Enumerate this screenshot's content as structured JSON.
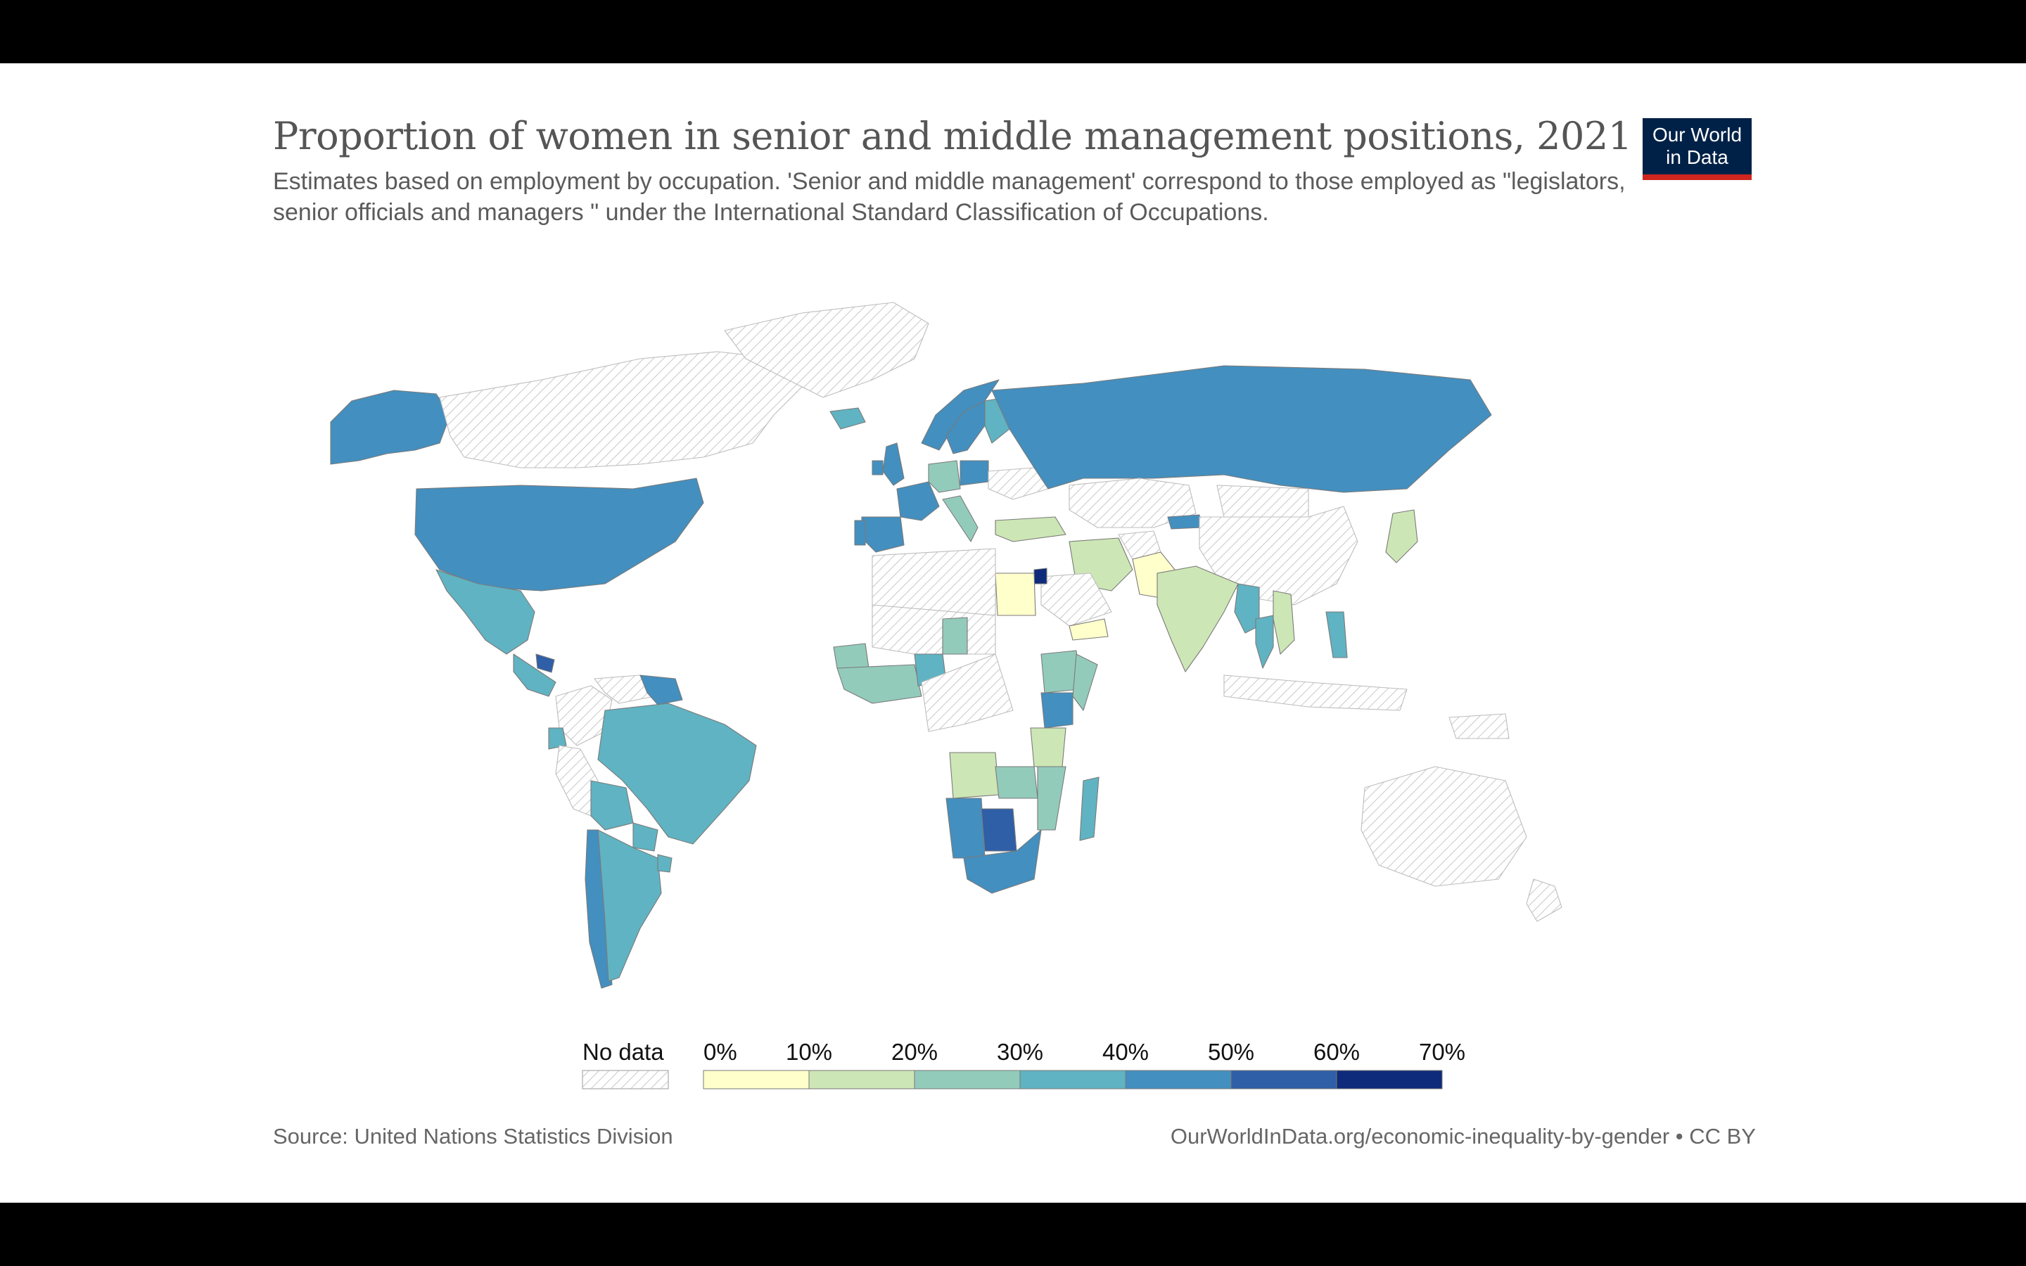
{
  "title": "Proportion of women in senior and middle management positions, 2021",
  "subtitle": "Estimates based on employment by occupation. 'Senior and middle management' correspond to those employed as \"legislators, senior officials and managers \" under the International Standard Classification of Occupations.",
  "logo": {
    "line1": "Our World",
    "line2": "in Data",
    "background": "#002147",
    "accent": "#ce261e"
  },
  "legend": {
    "no_data_label": "No data",
    "ticks": [
      "0%",
      "10%",
      "20%",
      "30%",
      "40%",
      "50%",
      "60%",
      "70%"
    ],
    "bins": [
      {
        "from": 0,
        "to": 10,
        "color": "#ffffcc"
      },
      {
        "from": 10,
        "to": 20,
        "color": "#cde6b5"
      },
      {
        "from": 20,
        "to": 30,
        "color": "#93cbbb"
      },
      {
        "from": 30,
        "to": 40,
        "color": "#60b3c2"
      },
      {
        "from": 40,
        "to": 50,
        "color": "#438fbf"
      },
      {
        "from": 50,
        "to": 60,
        "color": "#2f5fa6"
      },
      {
        "from": 60,
        "to": 70,
        "color": "#0e2a7a"
      }
    ]
  },
  "map_data": {
    "type": "choropleth",
    "year": 2021,
    "unit": "%",
    "regions": [
      {
        "name": "United States",
        "bin": 4
      },
      {
        "name": "Alaska",
        "bin": 4
      },
      {
        "name": "Canada",
        "bin": null
      },
      {
        "name": "Greenland",
        "bin": null
      },
      {
        "name": "Mexico",
        "bin": 3
      },
      {
        "name": "Central America",
        "bin": 3
      },
      {
        "name": "Guatemala",
        "bin": 5
      },
      {
        "name": "Colombia",
        "bin": null
      },
      {
        "name": "Venezuela",
        "bin": null
      },
      {
        "name": "Guyana",
        "bin": 4
      },
      {
        "name": "Ecuador",
        "bin": 3
      },
      {
        "name": "Peru",
        "bin": null
      },
      {
        "name": "Brazil",
        "bin": 3
      },
      {
        "name": "Bolivia",
        "bin": 3
      },
      {
        "name": "Paraguay",
        "bin": 3
      },
      {
        "name": "Chile",
        "bin": 4
      },
      {
        "name": "Argentina",
        "bin": 3
      },
      {
        "name": "Uruguay",
        "bin": 3
      },
      {
        "name": "Iceland",
        "bin": 3
      },
      {
        "name": "United Kingdom",
        "bin": 4
      },
      {
        "name": "Ireland",
        "bin": 4
      },
      {
        "name": "France",
        "bin": 4
      },
      {
        "name": "Spain",
        "bin": 4
      },
      {
        "name": "Portugal",
        "bin": 4
      },
      {
        "name": "Germany",
        "bin": 2
      },
      {
        "name": "Italy",
        "bin": 2
      },
      {
        "name": "Poland",
        "bin": 4
      },
      {
        "name": "Norway",
        "bin": 4
      },
      {
        "name": "Sweden",
        "bin": 4
      },
      {
        "name": "Finland",
        "bin": 3
      },
      {
        "name": "Ukraine",
        "bin": null
      },
      {
        "name": "Turkey",
        "bin": 1
      },
      {
        "name": "Russia",
        "bin": 4
      },
      {
        "name": "Kazakhstan",
        "bin": null
      },
      {
        "name": "Kyrgyzstan",
        "bin": 4
      },
      {
        "name": "China",
        "bin": null
      },
      {
        "name": "Mongolia",
        "bin": null
      },
      {
        "name": "Iran",
        "bin": 1
      },
      {
        "name": "Afghanistan",
        "bin": null
      },
      {
        "name": "Pakistan",
        "bin": 0
      },
      {
        "name": "India",
        "bin": 1
      },
      {
        "name": "Myanmar",
        "bin": 3
      },
      {
        "name": "Thailand",
        "bin": 3
      },
      {
        "name": "Vietnam",
        "bin": 1
      },
      {
        "name": "Philippines",
        "bin": 3
      },
      {
        "name": "Indonesia",
        "bin": null
      },
      {
        "name": "Japan",
        "bin": 1
      },
      {
        "name": "Saudi Arabia",
        "bin": null
      },
      {
        "name": "Yemen",
        "bin": 0
      },
      {
        "name": "Jordan",
        "bin": 6
      },
      {
        "name": "Egypt",
        "bin": 0
      },
      {
        "name": "North Africa",
        "bin": null
      },
      {
        "name": "Sahel",
        "bin": null
      },
      {
        "name": "Senegal",
        "bin": 2
      },
      {
        "name": "West Africa coast",
        "bin": 2
      },
      {
        "name": "Nigeria",
        "bin": 3
      },
      {
        "name": "Niger",
        "bin": 2
      },
      {
        "name": "Central Africa",
        "bin": null
      },
      {
        "name": "Ethiopia",
        "bin": 2
      },
      {
        "name": "Somalia",
        "bin": 2
      },
      {
        "name": "Kenya",
        "bin": 4
      },
      {
        "name": "Tanzania",
        "bin": 1
      },
      {
        "name": "Angola",
        "bin": 1
      },
      {
        "name": "Zambia",
        "bin": 2
      },
      {
        "name": "Mozambique",
        "bin": 2
      },
      {
        "name": "Namibia",
        "bin": 4
      },
      {
        "name": "Botswana",
        "bin": 5
      },
      {
        "name": "South Africa",
        "bin": 4
      },
      {
        "name": "Madagascar",
        "bin": 3
      },
      {
        "name": "Australia",
        "bin": null
      },
      {
        "name": "New Zealand",
        "bin": null
      },
      {
        "name": "Papua New Guinea",
        "bin": null
      }
    ]
  },
  "footer": {
    "source": "Source: United Nations Statistics Division",
    "url": "OurWorldInData.org/economic-inequality-by-gender • CC BY"
  }
}
